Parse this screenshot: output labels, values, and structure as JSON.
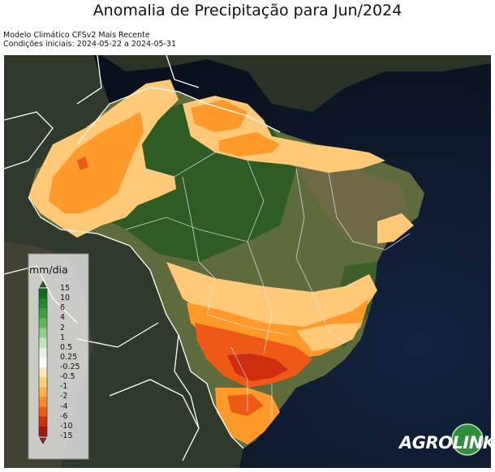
{
  "title": "Anomalia de Precipitação para Jun/2024",
  "subtitle_line1": "Modelo Climático CFSv2 Mais Recente",
  "subtitle_line2": "Condições iniciais: 2024-05-22 a 2024-05-31",
  "legend": {
    "unit": "mm/dia",
    "ticks": [
      "15",
      "10",
      "6",
      "4",
      "2",
      "1",
      "0.5",
      "0.25",
      "-0.25",
      "-0.5",
      "-1",
      "-2",
      "-4",
      "-6",
      "-10",
      "-15"
    ],
    "colors": [
      "#0b6e22",
      "#1f8a31",
      "#3ba043",
      "#62b85b",
      "#92cf86",
      "#c3e6b8",
      "#e8f4e2",
      "#ffffff",
      "#ffe7b6",
      "#ffd27a",
      "#ffb24c",
      "#ff8a26",
      "#f05c16",
      "#d3300f",
      "#a8150c"
    ]
  },
  "map_colors": {
    "ocean": "#0d1526",
    "land_dark": "#2a3326",
    "forest": "#2f5c25",
    "savanna": "#5d6b3d",
    "anom_light": "#ffc978",
    "anom_orange": "#ff9a2a",
    "anom_dark": "#ee5a16",
    "anom_red": "#cf2c10"
  },
  "logo": {
    "part1": "AGRO",
    "part2": "LINK"
  }
}
